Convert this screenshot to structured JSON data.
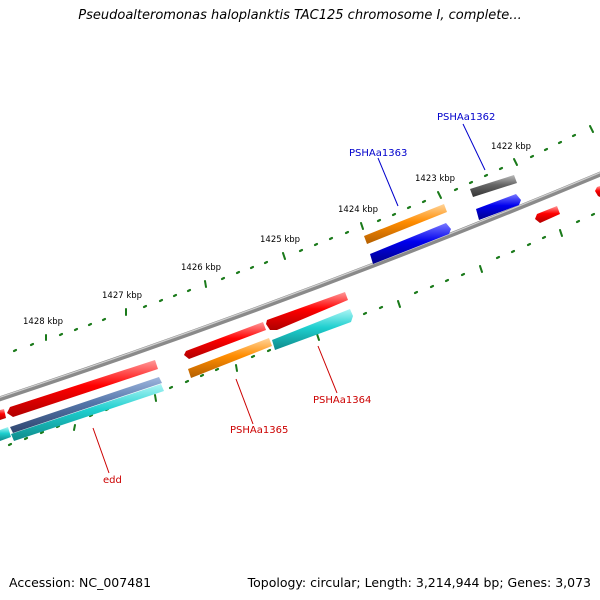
{
  "title": "Pseudoalteromonas haloplanktis TAC125 chromosome I, complete...",
  "footer": {
    "accession": "Accession: NC_007481",
    "summary": "Topology: circular; Length: 3,214,944 bp; Genes: 3,073"
  },
  "scale": [
    "1422 kbp",
    "1423 kbp",
    "1424 kbp",
    "1425 kbp",
    "1426 kbp",
    "1427 kbp",
    "1428 kbp"
  ],
  "genes": {
    "edd": "edd",
    "g1362": "PSHAa1362",
    "g1363": "PSHAa1363",
    "g1364": "PSHAa1364",
    "g1365": "PSHAa1365"
  },
  "colors": {
    "red": "#ff0000",
    "blue": "#0000dd",
    "orange": "#ff8c00",
    "cyan": "#1ecfcf",
    "gray": "#666666",
    "steel": "#5577aa",
    "tick": "#1a7a1a",
    "label_blue": "#0000cc",
    "label_red": "#cc0000"
  }
}
